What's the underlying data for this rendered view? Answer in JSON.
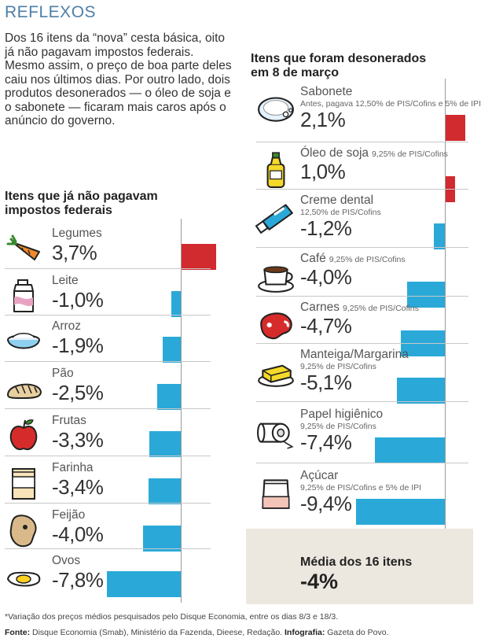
{
  "kicker": "REFLEXOS",
  "intro": "Dos 16 itens da “nova” cesta básica, oito já não pagavam impostos federais. Mesmo assim, o preço de boa parte deles caiu nos últimos dias. Por outro lado, dois produtos desonerados — o óleo de soja e o sabonete — ficaram mais caros após o anúncio do governo.",
  "colors": {
    "positive": "#d12a2f",
    "negative": "#2aa9d9",
    "kicker": "#4d7fa8",
    "average_box": "#ece7df"
  },
  "chart_data": [
    {
      "type": "bar",
      "orientation": "horizontal",
      "title": "Itens que já não pagavam impostos federais",
      "unit": "%",
      "categories": [
        "Legumes",
        "Leite",
        "Arroz",
        "Pão",
        "Frutas",
        "Farinha",
        "Feijão",
        "Ovos"
      ],
      "values": [
        3.7,
        -1.0,
        -1.9,
        -2.5,
        -3.3,
        -3.4,
        -4.0,
        -7.8
      ],
      "labels": [
        "3,7%",
        "-1,0%",
        "-1,9%",
        "-2,5%",
        "-3,3%",
        "-3,4%",
        "-4,0%",
        "-7,8%"
      ],
      "icons": [
        "carrot-icon",
        "milk-carton-icon",
        "rice-bowl-icon",
        "bread-icon",
        "apple-icon",
        "flour-bag-icon",
        "bean-icon",
        "egg-icon"
      ]
    },
    {
      "type": "bar",
      "orientation": "horizontal",
      "title": "Itens que foram desonerados em 8 de março",
      "unit": "%",
      "categories": [
        "Sabonete",
        "Óleo de soja",
        "Creme dental",
        "Café",
        "Carnes",
        "Manteiga/Margarina",
        "Papel higiênico",
        "Açúcar"
      ],
      "notes": [
        "Antes, pagava 12,50% de PIS/Cofins e 5% de IPI",
        "9,25% de PIS/Cofins",
        "12,50% de PIS/Cofins",
        "9,25% de PIS/Cofins",
        "9,25% de PIS/Cofins",
        "9,25% de PIS/Cofins",
        "9,25% de PIS/Cofins",
        "9,25% de PIS/Cofins e 5% de IPI"
      ],
      "values": [
        2.1,
        1.0,
        -1.2,
        -4.0,
        -4.7,
        -5.1,
        -7.4,
        -9.4
      ],
      "labels": [
        "2,1%",
        "1,0%",
        "-1,2%",
        "-4,0%",
        "-4,7%",
        "-5,1%",
        "-7,4%",
        "-9,4%"
      ],
      "icons": [
        "soap-icon",
        "oil-bottle-icon",
        "toothpaste-icon",
        "coffee-cup-icon",
        "meat-icon",
        "butter-icon",
        "toilet-paper-icon",
        "sugar-bag-icon"
      ],
      "average": {
        "label": "Média dos 16 itens",
        "value": -4.0,
        "display": "-4%"
      }
    }
  ],
  "footnote": "*Variação dos preços médios pesquisados pelo Disque Economia, entre os dias 8/3 e 18/3.",
  "source": {
    "label": "Fonte:",
    "text": "Disque Economia (Smab), Ministério da Fazenda, Dieese, Redação.",
    "infographic_label": "Infografia:",
    "infographic_text": "Gazeta do Povo."
  }
}
